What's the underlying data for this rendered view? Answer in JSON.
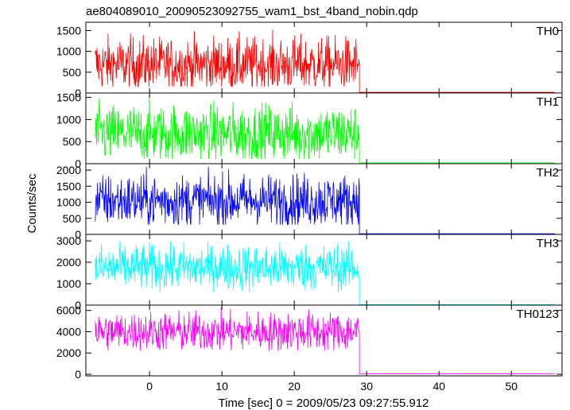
{
  "chart_data": {
    "type": "line",
    "title": "ae804089010_20090523092755_wam1_bst_4band_nobin.qdp",
    "xlabel": "Time [sec] 0 = 2009/05/23 09:27:55.912",
    "ylabel": "Counts/sec",
    "xlim": [
      -8.8,
      57
    ],
    "x_ticks": [
      0,
      10,
      20,
      30,
      40,
      50
    ],
    "x_tick_labels": [
      "0",
      "10",
      "20",
      "30",
      "40",
      "50"
    ],
    "data_end_time": 29.0,
    "trace_start_time": -7.5,
    "trace_end_time": 56.0,
    "panels": [
      {
        "name": "TH0",
        "color": "#ff0000",
        "ylim": [
          0,
          1700
        ],
        "y_ticks": [
          0,
          500,
          1000,
          1500
        ],
        "y_tick_labels": [
          "0",
          "500",
          "1000",
          "1500"
        ],
        "typical_rate": 680,
        "noise_range": [
          150,
          1600
        ],
        "post_level": 15
      },
      {
        "name": "TH1",
        "color": "#00ff00",
        "ylim": [
          0,
          1600
        ],
        "y_ticks": [
          0,
          500,
          1000,
          1500
        ],
        "y_tick_labels": [
          "0",
          "500",
          "1000",
          "1500"
        ],
        "typical_rate": 680,
        "noise_range": [
          100,
          1550
        ],
        "post_level": 20
      },
      {
        "name": "TH2",
        "color": "#0000ff",
        "ylim": [
          0,
          2200
        ],
        "y_ticks": [
          0,
          500,
          1000,
          1500,
          2000
        ],
        "y_tick_labels": [
          "0",
          "500",
          "1000",
          "1500",
          "2000"
        ],
        "typical_rate": 1050,
        "noise_range": [
          300,
          2100
        ],
        "post_level": 20
      },
      {
        "name": "TH3",
        "color": "#00ffff",
        "ylim": [
          0,
          3300
        ],
        "y_ticks": [
          0,
          1000,
          2000,
          3000
        ],
        "y_tick_labels": [
          "0",
          "1000",
          "2000",
          "3000"
        ],
        "typical_rate": 1750,
        "noise_range": [
          600,
          3000
        ],
        "post_level": 20
      },
      {
        "name": "TH0123",
        "color": "#ff00ff",
        "ylim": [
          -150,
          6500
        ],
        "y_ticks": [
          0,
          2000,
          4000,
          6000
        ],
        "y_tick_labels": [
          "0",
          "2000",
          "4000",
          "6000"
        ],
        "typical_rate": 4000,
        "noise_range": [
          2200,
          6300
        ],
        "post_level": 50
      }
    ]
  }
}
